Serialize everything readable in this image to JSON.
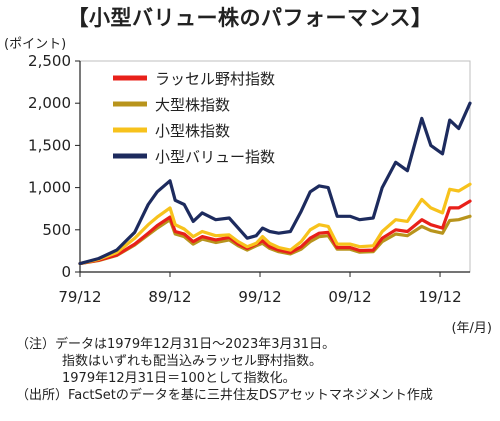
{
  "title": "【小型バリュー株のパフォーマンス】",
  "y_unit_label": "(ポイント)",
  "x_unit_label": "(年/月)",
  "notes": [
    "（注）データは1979年12月31日～2023年3月31日。",
    "指数はいずれも配当込みラッセル野村指数。",
    "1979年12月31日＝100として指数化。",
    "（出所）FactSetのデータを基に三井住友DSアセットマネジメント作成"
  ],
  "chart_data": {
    "type": "line",
    "title": "【小型バリュー株のパフォーマンス】",
    "ylabel": "(ポイント)",
    "xlabel": "(年/月)",
    "ylim": [
      0,
      2500
    ],
    "xlim": [
      1979.92,
      2023.25
    ],
    "yticks": [
      0,
      500,
      1000,
      1500,
      2000,
      2500
    ],
    "ytick_labels": [
      "0",
      "500",
      "1,000",
      "1,500",
      "2,000",
      "2,500"
    ],
    "xticks": [
      1979.92,
      1989.92,
      1999.92,
      2009.92,
      2019.92
    ],
    "xtick_labels": [
      "79/12",
      "89/12",
      "99/12",
      "09/12",
      "19/12"
    ],
    "grid": false,
    "legend_position": "top-left",
    "series": [
      {
        "name": "ラッセル野村指数",
        "color": "#e8201a",
        "x": [
          1979.92,
          1982,
          1984,
          1986,
          1987.5,
          1988.5,
          1989.92,
          1990.5,
          1991.5,
          1992.5,
          1993.5,
          1995,
          1996.5,
          1997.5,
          1998.5,
          1999.5,
          2000.2,
          2001,
          2002,
          2003.3,
          2004.5,
          2005.5,
          2006.5,
          2007.5,
          2008.5,
          2009.92,
          2011,
          2012.5,
          2013.5,
          2015,
          2016.3,
          2017.9,
          2018.9,
          2020.2,
          2021,
          2022,
          2023.25
        ],
        "values": [
          100,
          140,
          200,
          330,
          460,
          550,
          650,
          480,
          450,
          360,
          420,
          380,
          410,
          330,
          280,
          330,
          370,
          300,
          260,
          230,
          300,
          400,
          460,
          470,
          290,
          290,
          255,
          260,
          400,
          500,
          480,
          620,
          560,
          520,
          760,
          760,
          840
        ]
      },
      {
        "name": "大型株指数",
        "color": "#b8941c",
        "x": [
          1979.92,
          1982,
          1984,
          1986,
          1987.5,
          1988.5,
          1989.92,
          1990.5,
          1991.5,
          1992.5,
          1993.5,
          1995,
          1996.5,
          1997.5,
          1998.5,
          1999.5,
          2000.2,
          2001,
          2002,
          2003.3,
          2004.5,
          2005.5,
          2006.5,
          2007.5,
          2008.5,
          2009.92,
          2011,
          2012.5,
          2013.5,
          2015,
          2016.3,
          2017.9,
          2018.9,
          2020.2,
          2021,
          2022,
          2023.25
        ],
        "values": [
          100,
          135,
          195,
          320,
          440,
          520,
          620,
          450,
          420,
          330,
          390,
          350,
          380,
          310,
          260,
          310,
          340,
          280,
          240,
          215,
          270,
          360,
          420,
          430,
          270,
          270,
          235,
          240,
          360,
          450,
          430,
          540,
          490,
          460,
          610,
          620,
          660
        ]
      },
      {
        "name": "小型株指数",
        "color": "#f7c21c",
        "x": [
          1979.92,
          1982,
          1984,
          1986,
          1987.5,
          1988.5,
          1989.92,
          1990.5,
          1991.5,
          1992.5,
          1993.5,
          1995,
          1996.5,
          1997.5,
          1998.5,
          1999.5,
          2000.2,
          2001,
          2002,
          2003.3,
          2004.5,
          2005.5,
          2006.5,
          2007.5,
          2008.5,
          2009.92,
          2011,
          2012.5,
          2013.5,
          2015,
          2016.3,
          2017.9,
          2018.9,
          2020.2,
          2021,
          2022,
          2023.25
        ],
        "values": [
          100,
          150,
          230,
          400,
          560,
          650,
          760,
          560,
          510,
          420,
          480,
          430,
          440,
          360,
          300,
          340,
          420,
          340,
          290,
          260,
          360,
          500,
          560,
          540,
          330,
          330,
          300,
          310,
          480,
          620,
          600,
          860,
          760,
          700,
          980,
          960,
          1040
        ]
      },
      {
        "name": "小型バリュー指数",
        "color": "#1d2b5e",
        "x": [
          1979.92,
          1982,
          1984,
          1986,
          1987.5,
          1988.5,
          1989.92,
          1990.5,
          1991.5,
          1992.5,
          1993.5,
          1995,
          1996.5,
          1997.5,
          1998.5,
          1999.5,
          2000.2,
          2001,
          2002,
          2003.3,
          2004.5,
          2005.5,
          2006.5,
          2007.5,
          2008.5,
          2009.92,
          2011,
          2012.5,
          2013.5,
          2015,
          2016.3,
          2017.9,
          2018.9,
          2020.2,
          2021,
          2022,
          2023.25
        ],
        "values": [
          100,
          160,
          260,
          470,
          800,
          950,
          1080,
          850,
          800,
          600,
          700,
          620,
          640,
          520,
          400,
          430,
          520,
          480,
          460,
          480,
          720,
          950,
          1020,
          1000,
          660,
          660,
          620,
          640,
          1000,
          1300,
          1200,
          1820,
          1500,
          1400,
          1800,
          1700,
          2000
        ]
      }
    ]
  }
}
